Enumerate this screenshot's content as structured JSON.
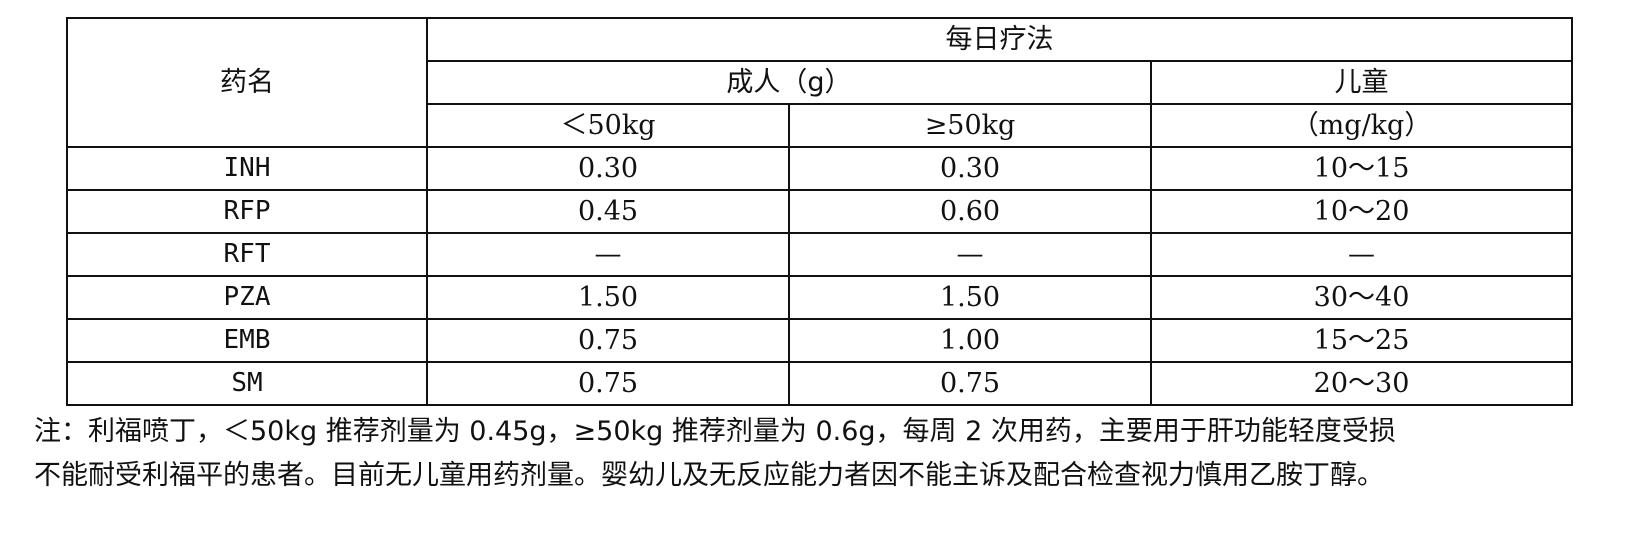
{
  "table": {
    "header": {
      "drug_name": "药名",
      "daily_regimen": "每日疗法",
      "adult": "成人（g）",
      "child": "儿童",
      "weight_lt50": "＜50kg",
      "weight_ge50": "≥50kg",
      "child_unit": "（mg/kg）"
    },
    "rows": [
      {
        "drug": "INH",
        "lt50": "0.30",
        "ge50": "0.30",
        "child": "10～15"
      },
      {
        "drug": "RFP",
        "lt50": "0.45",
        "ge50": "0.60",
        "child": "10～20"
      },
      {
        "drug": "RFT",
        "lt50": "—",
        "ge50": "—",
        "child": "—"
      },
      {
        "drug": "PZA",
        "lt50": "1.50",
        "ge50": "1.50",
        "child": "30～40"
      },
      {
        "drug": "EMB",
        "lt50": "0.75",
        "ge50": "1.00",
        "child": "15～25"
      },
      {
        "drug": "SM",
        "lt50": "0.75",
        "ge50": "0.75",
        "child": "20～30"
      }
    ]
  },
  "note": {
    "line1": "注：利福喷丁，＜50kg 推荐剂量为 0.45g，≥50kg 推荐剂量为 0.6g，每周 2 次用药，主要用于肝功能轻度受损",
    "line2": "不能耐受利福平的患者。目前无儿童用药剂量。婴幼儿及无反应能力者因不能主诉及配合检查视力慎用乙胺丁醇。"
  }
}
